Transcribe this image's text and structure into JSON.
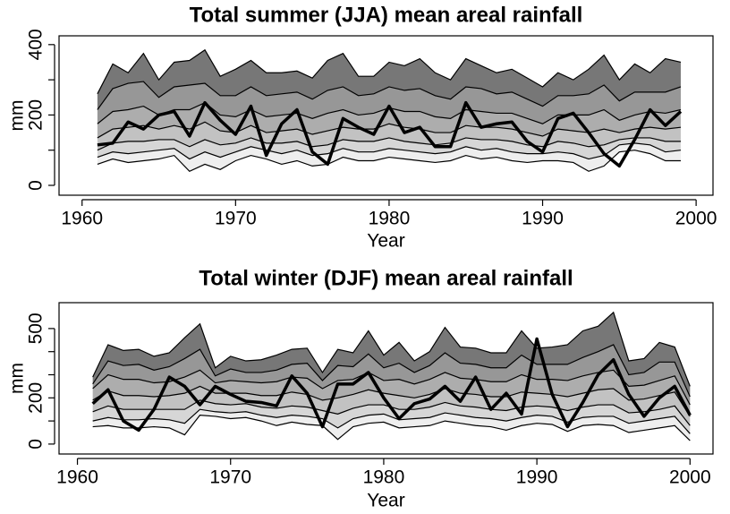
{
  "chart_data": [
    {
      "type": "fan",
      "title": "Total summer (JJA) mean areal rainfall",
      "xlabel": "Year",
      "ylabel": "mm",
      "x": [
        1961,
        1962,
        1963,
        1964,
        1965,
        1966,
        1967,
        1968,
        1969,
        1970,
        1971,
        1972,
        1973,
        1974,
        1975,
        1976,
        1977,
        1978,
        1979,
        1980,
        1981,
        1982,
        1983,
        1984,
        1985,
        1986,
        1987,
        1988,
        1989,
        1990,
        1991,
        1992,
        1993,
        1994,
        1995,
        1996,
        1997,
        1998,
        1999
      ],
      "quantiles": [
        [
          60,
          75,
          65,
          70,
          75,
          85,
          40,
          60,
          45,
          70,
          85,
          75,
          60,
          70,
          55,
          60,
          80,
          70,
          70,
          80,
          75,
          70,
          65,
          70,
          85,
          75,
          80,
          70,
          65,
          70,
          70,
          65,
          40,
          55,
          95,
          100,
          90,
          70,
          70
        ],
        [
          80,
          95,
          90,
          95,
          100,
          105,
          75,
          95,
          80,
          95,
          110,
          100,
          90,
          100,
          85,
          90,
          105,
          95,
          95,
          105,
          100,
          95,
          90,
          95,
          110,
          100,
          105,
          95,
          90,
          90,
          95,
          90,
          75,
          85,
          115,
          120,
          115,
          95,
          100
        ],
        [
          100,
          120,
          125,
          125,
          130,
          130,
          110,
          130,
          115,
          120,
          135,
          120,
          120,
          125,
          110,
          115,
          130,
          125,
          125,
          135,
          125,
          120,
          115,
          120,
          135,
          130,
          130,
          125,
          115,
          110,
          125,
          120,
          110,
          115,
          130,
          135,
          135,
          125,
          125
        ],
        [
          135,
          160,
          165,
          170,
          160,
          170,
          160,
          180,
          155,
          150,
          170,
          150,
          155,
          160,
          145,
          155,
          165,
          160,
          160,
          175,
          165,
          160,
          150,
          150,
          170,
          165,
          165,
          160,
          150,
          140,
          160,
          155,
          150,
          160,
          150,
          160,
          165,
          160,
          165
        ],
        [
          175,
          210,
          215,
          225,
          200,
          215,
          215,
          235,
          200,
          195,
          215,
          195,
          200,
          205,
          190,
          205,
          215,
          200,
          205,
          220,
          210,
          210,
          195,
          190,
          215,
          210,
          205,
          205,
          190,
          175,
          200,
          200,
          200,
          215,
          185,
          200,
          210,
          205,
          215
        ],
        [
          215,
          275,
          290,
          295,
          250,
          280,
          285,
          290,
          255,
          255,
          280,
          255,
          260,
          265,
          245,
          270,
          280,
          255,
          260,
          280,
          270,
          275,
          255,
          245,
          280,
          275,
          260,
          265,
          245,
          225,
          255,
          255,
          260,
          285,
          240,
          265,
          265,
          265,
          280
        ],
        [
          260,
          345,
          320,
          375,
          300,
          350,
          355,
          385,
          310,
          330,
          355,
          320,
          320,
          325,
          305,
          355,
          375,
          310,
          310,
          350,
          340,
          360,
          320,
          300,
          360,
          340,
          320,
          330,
          305,
          280,
          320,
          300,
          330,
          370,
          300,
          345,
          320,
          360,
          350
        ]
      ],
      "band_colors": [
        "#eeeeee",
        "#d6d6d6",
        "#c2c2c2",
        "#adadad",
        "#979797",
        "#777777"
      ],
      "observed": {
        "color": "#000000",
        "values": [
          115,
          120,
          180,
          160,
          200,
          210,
          140,
          235,
          185,
          145,
          225,
          85,
          175,
          215,
          95,
          60,
          190,
          165,
          145,
          225,
          150,
          165,
          110,
          110,
          235,
          165,
          175,
          180,
          125,
          95,
          190,
          205,
          150,
          90,
          55,
          130,
          215,
          170,
          210
        ]
      },
      "xlim": [
        1958.5,
        2001.1
      ],
      "ylim": [
        -28,
        425
      ],
      "xticks": [
        1960,
        1970,
        1980,
        1990,
        2000
      ],
      "yticks": [
        0,
        200,
        400
      ],
      "minor_yticks": [
        100,
        300
      ]
    },
    {
      "type": "fan",
      "title": "Total winter (DJF) mean areal rainfall",
      "xlabel": "Year",
      "ylabel": "mm",
      "x": [
        1961,
        1962,
        1963,
        1964,
        1965,
        1966,
        1967,
        1968,
        1969,
        1970,
        1971,
        1972,
        1973,
        1974,
        1975,
        1976,
        1977,
        1978,
        1979,
        1980,
        1981,
        1982,
        1983,
        1984,
        1985,
        1986,
        1987,
        1988,
        1989,
        1990,
        1991,
        1992,
        1993,
        1994,
        1995,
        1996,
        1997,
        1998,
        1999,
        2000
      ],
      "quantiles": [
        [
          75,
          80,
          70,
          70,
          75,
          70,
          40,
          125,
          120,
          110,
          115,
          100,
          80,
          95,
          85,
          80,
          20,
          75,
          90,
          95,
          70,
          75,
          80,
          100,
          90,
          80,
          75,
          60,
          80,
          90,
          85,
          55,
          80,
          85,
          80,
          50,
          60,
          70,
          80,
          15
        ],
        [
          100,
          115,
          105,
          105,
          110,
          105,
          90,
          150,
          140,
          135,
          140,
          125,
          115,
          125,
          120,
          110,
          70,
          110,
          125,
          130,
          105,
          110,
          115,
          135,
          125,
          115,
          110,
          100,
          115,
          125,
          120,
          95,
          115,
          120,
          120,
          90,
          100,
          110,
          120,
          45
        ],
        [
          140,
          165,
          150,
          150,
          150,
          150,
          150,
          190,
          175,
          170,
          175,
          160,
          155,
          165,
          160,
          145,
          130,
          155,
          170,
          170,
          150,
          150,
          160,
          180,
          165,
          160,
          150,
          145,
          160,
          165,
          160,
          145,
          160,
          170,
          170,
          135,
          140,
          150,
          165,
          80
        ],
        [
          190,
          230,
          210,
          210,
          205,
          210,
          220,
          250,
          220,
          220,
          220,
          210,
          210,
          225,
          215,
          190,
          200,
          215,
          235,
          220,
          210,
          200,
          215,
          240,
          220,
          215,
          205,
          205,
          225,
          220,
          215,
          205,
          220,
          235,
          240,
          190,
          195,
          210,
          225,
          120
        ],
        [
          240,
          300,
          280,
          280,
          265,
          270,
          290,
          320,
          265,
          275,
          270,
          265,
          270,
          290,
          285,
          240,
          275,
          280,
          310,
          275,
          280,
          260,
          280,
          310,
          285,
          280,
          270,
          270,
          300,
          280,
          280,
          275,
          295,
          310,
          320,
          250,
          255,
          275,
          295,
          170
        ],
        [
          260,
          360,
          340,
          345,
          320,
          335,
          370,
          410,
          295,
          325,
          310,
          310,
          320,
          345,
          350,
          275,
          340,
          335,
          390,
          330,
          350,
          310,
          340,
          395,
          350,
          345,
          330,
          330,
          385,
          345,
          345,
          345,
          375,
          400,
          430,
          300,
          310,
          355,
          355,
          205
        ],
        [
          290,
          430,
          405,
          410,
          380,
          395,
          460,
          520,
          330,
          380,
          360,
          365,
          385,
          410,
          415,
          310,
          410,
          395,
          490,
          385,
          440,
          360,
          400,
          505,
          420,
          415,
          395,
          395,
          490,
          415,
          420,
          430,
          490,
          510,
          570,
          360,
          370,
          440,
          420,
          250
        ]
      ],
      "band_colors": [
        "#eeeeee",
        "#d6d6d6",
        "#c2c2c2",
        "#adadad",
        "#979797",
        "#777777"
      ],
      "observed": {
        "color": "#000000",
        "values": [
          175,
          235,
          100,
          60,
          150,
          290,
          250,
          170,
          250,
          215,
          185,
          180,
          165,
          295,
          220,
          75,
          260,
          260,
          310,
          200,
          110,
          175,
          195,
          250,
          185,
          290,
          150,
          220,
          130,
          455,
          215,
          75,
          180,
          300,
          365,
          215,
          120,
          200,
          250,
          125
        ]
      },
      "xlim": [
        1958.8,
        2001.5
      ],
      "ylim": [
        -43,
        612
      ],
      "xticks": [
        1960,
        1970,
        1980,
        1990,
        2000
      ],
      "yticks": [
        0,
        200,
        500
      ],
      "minor_yticks": [
        100,
        300,
        400
      ]
    }
  ]
}
